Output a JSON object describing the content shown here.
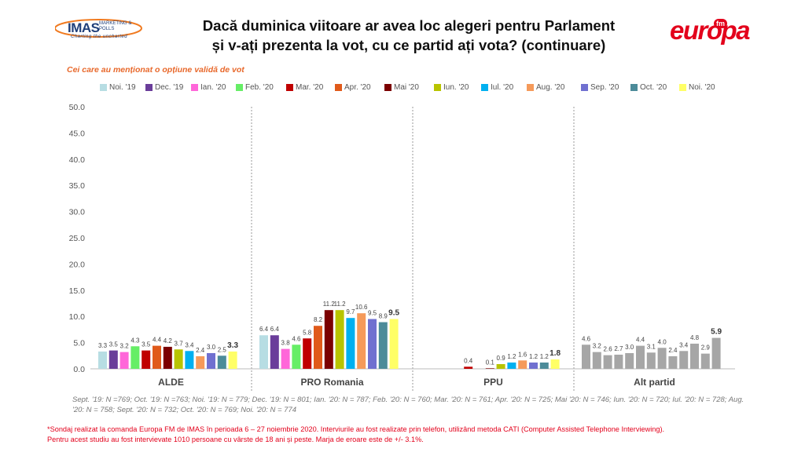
{
  "header": {
    "imas_name": "IMAS",
    "imas_sub": "MARKETING & POLLS",
    "imas_tagline": "Charting the uncharted",
    "title_line1": "Dacă duminica viitoare ar avea loc alegeri pentru Parlament",
    "title_line2": "și v-ați prezenta la vot, cu ce partid ați vota? (continuare)",
    "europa_logo": "europa",
    "europa_fm": "fm"
  },
  "subtitle": "Cei care au menționat o opțiune validă de vot",
  "colors": {
    "series": [
      "#b7dde3",
      "#6a3d9a",
      "#ff66d9",
      "#66ee66",
      "#c00000",
      "#e05a1a",
      "#7b0000",
      "#b8c400",
      "#00b0f0",
      "#f59a5a",
      "#7070d0",
      "#4c8b99",
      "#ffff66"
    ],
    "alt_partid": "#a6a6a6",
    "footnote": "#e3001b",
    "subtitle": "#e8682b"
  },
  "chart_data": {
    "type": "bar",
    "title": "Dacă duminica viitoare ar avea loc alegeri pentru Parlament și v-ați prezenta la vot, cu ce partid ați vota? (continuare)",
    "ylim": [
      0,
      50
    ],
    "yticks": [
      "0.0",
      "5.0",
      "10.0",
      "15.0",
      "20.0",
      "25.0",
      "30.0",
      "35.0",
      "40.0",
      "45.0",
      "50.0"
    ],
    "grid": false,
    "legend_position": "top",
    "categories": [
      "ALDE",
      "PRO Romania",
      "PPU",
      "Alt partid"
    ],
    "series": [
      {
        "name": "Noi. '19",
        "values": [
          3.3,
          6.4,
          null,
          4.6
        ]
      },
      {
        "name": "Dec. '19",
        "values": [
          3.5,
          6.4,
          null,
          3.2
        ]
      },
      {
        "name": "Ian. '20",
        "values": [
          3.2,
          3.8,
          null,
          2.6
        ]
      },
      {
        "name": "Feb. '20",
        "values": [
          4.3,
          4.6,
          null,
          2.7
        ]
      },
      {
        "name": "Mar. '20",
        "values": [
          3.5,
          5.8,
          0.4,
          3.0
        ]
      },
      {
        "name": "Apr. '20",
        "values": [
          4.4,
          8.2,
          null,
          4.4
        ]
      },
      {
        "name": "Mai '20",
        "values": [
          4.2,
          11.2,
          0.1,
          3.1
        ]
      },
      {
        "name": "Iun. '20",
        "values": [
          3.7,
          11.2,
          0.9,
          4.0
        ]
      },
      {
        "name": "Iul. '20",
        "values": [
          3.4,
          9.7,
          1.2,
          2.4
        ]
      },
      {
        "name": "Aug. '20",
        "values": [
          2.4,
          10.6,
          1.6,
          3.4
        ]
      },
      {
        "name": "Sep. '20",
        "values": [
          3.0,
          9.5,
          1.2,
          4.8
        ]
      },
      {
        "name": "Oct. '20",
        "values": [
          2.5,
          8.9,
          1.2,
          2.9
        ]
      },
      {
        "name": "Noi. '20",
        "values": [
          3.3,
          9.5,
          1.8,
          5.9
        ]
      }
    ]
  },
  "sample_note": "Sept. '19: N =769; Oct. '19: N =763; Noi. '19: N = 779; Dec. '19: N = 801; Ian. '20: N = 787; Feb. '20: N = 760; Mar. '20: N = 761; Apr. '20: N = 725; Mai '20: N = 746; Iun. '20: N = 720; Iul. '20: N = 728; Aug. '20: N = 758; Sept. '20: N = 732; Oct. '20: N = 769; Noi. '20: N = 774",
  "footnote_line1": "*Sondaj realizat la comanda Europa FM de IMAS în perioada  6 – 27 noiembrie 2020. Interviurile au fost realizate prin telefon, utilizând metoda CATI (Computer Assisted Telephone Interviewing).",
  "footnote_line2": "Pentru acest studiu au fost intervievate 1010 persoane cu vârste de 18 ani și peste. Marja de eroare este de +/- 3.1%."
}
